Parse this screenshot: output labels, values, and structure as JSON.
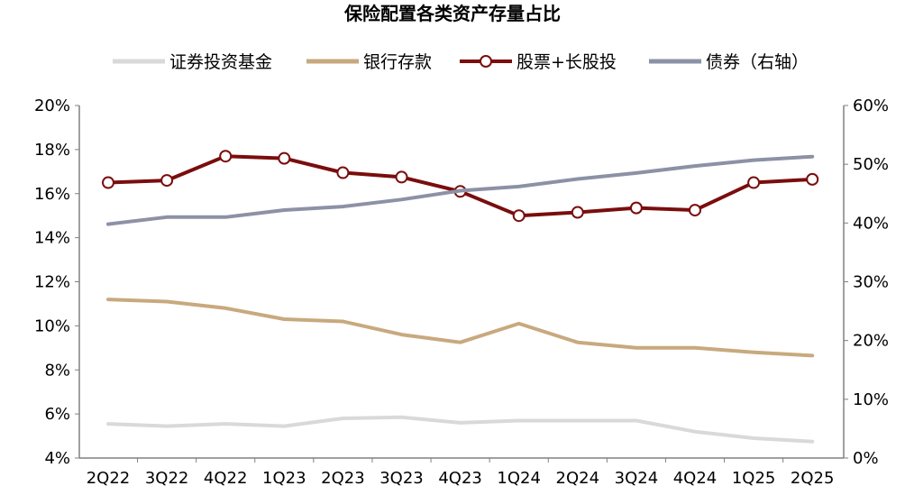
{
  "chart_data": {
    "type": "line",
    "title": "保险配置各类资产存量占比",
    "categories": [
      "2Q22",
      "3Q22",
      "4Q22",
      "1Q23",
      "2Q23",
      "3Q23",
      "4Q23",
      "1Q24",
      "2Q24",
      "3Q24",
      "4Q24",
      "1Q25",
      "2Q25"
    ],
    "y_left": {
      "min": 4,
      "max": 20,
      "ticks": [
        4,
        6,
        8,
        10,
        12,
        14,
        16,
        18,
        20
      ],
      "tick_labels": [
        "4%",
        "6%",
        "8%",
        "10%",
        "12%",
        "14%",
        "16%",
        "18%",
        "20%"
      ]
    },
    "y_right": {
      "min": 0,
      "max": 60,
      "ticks": [
        0,
        10,
        20,
        30,
        40,
        50,
        60
      ],
      "tick_labels": [
        "0%",
        "10%",
        "20%",
        "30%",
        "40%",
        "50%",
        "60%"
      ]
    },
    "legend_position": "top",
    "grid": false,
    "series": [
      {
        "name": "证券投资基金",
        "axis": "left",
        "color": "#d9d9d9",
        "marker": "none",
        "values": [
          5.55,
          5.45,
          5.55,
          5.45,
          5.8,
          5.85,
          5.6,
          5.7,
          5.7,
          5.7,
          5.2,
          4.9,
          4.75
        ]
      },
      {
        "name": "银行存款",
        "axis": "left",
        "color": "#c8a97e",
        "marker": "none",
        "values": [
          11.2,
          11.1,
          10.8,
          10.3,
          10.2,
          9.6,
          9.25,
          10.1,
          9.25,
          9.0,
          9.0,
          8.8,
          8.65
        ]
      },
      {
        "name": "股票+长股投",
        "axis": "left",
        "color": "#7a0d0d",
        "marker": "circle",
        "values": [
          16.5,
          16.6,
          17.7,
          17.6,
          16.95,
          16.75,
          16.1,
          15.0,
          15.15,
          15.35,
          15.25,
          16.5,
          16.65
        ]
      },
      {
        "name": "债券（右轴）",
        "axis": "right",
        "color": "#8c91a6",
        "marker": "none",
        "values": [
          39.8,
          41.0,
          41.0,
          42.2,
          42.8,
          44.0,
          45.5,
          46.2,
          47.5,
          48.5,
          49.7,
          50.7,
          51.3
        ]
      }
    ]
  }
}
